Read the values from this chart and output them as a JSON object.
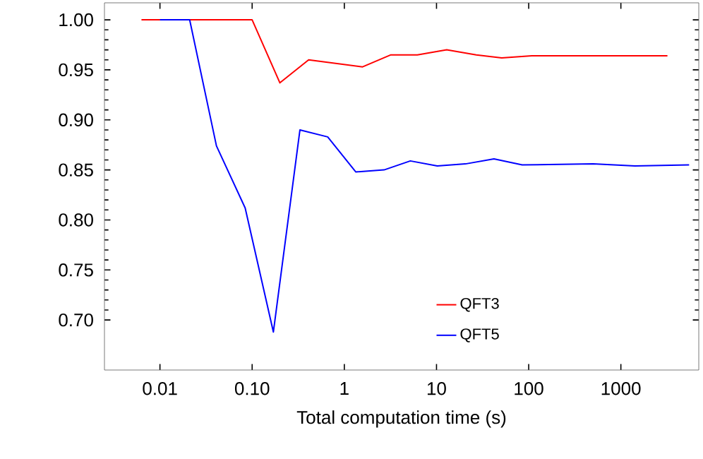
{
  "chart_data": {
    "type": "line",
    "xlabel": "Total computation time (s)",
    "log": "x",
    "xlim": [
      0.0025,
      7000
    ],
    "ylim": [
      0.65,
      1.017
    ],
    "xticks": [
      0.01,
      {
        "value": 0.1,
        "label": "0.10"
      },
      1,
      10,
      100,
      1000
    ],
    "yticks": [
      {
        "value": 0.7,
        "label": "0.70"
      },
      0.75,
      {
        "value": 0.8,
        "label": "0.80"
      },
      0.85,
      {
        "value": 0.9,
        "label": "0.90"
      },
      0.95,
      {
        "value": 1.0,
        "label": "1.00"
      }
    ],
    "legend": "bottom right",
    "grid": false,
    "marker": "none",
    "line_style": "solid",
    "series": [
      {
        "name": "QFT3",
        "color": "#ff0000",
        "x": [
          0.0063,
          0.1,
          0.2,
          0.41,
          1.58,
          3.2,
          6.2,
          12.9,
          27,
          51,
          108,
          3200
        ],
        "values": [
          1.0,
          1.0,
          0.937,
          0.96,
          0.953,
          0.965,
          0.965,
          0.97,
          0.965,
          0.962,
          0.964,
          0.964
        ]
      },
      {
        "name": "QFT5",
        "color": "#0000ff",
        "x": [
          0.01,
          0.021,
          0.041,
          0.084,
          0.17,
          0.33,
          0.66,
          1.33,
          2.7,
          5.2,
          10.2,
          20.6,
          42,
          85,
          500,
          1420,
          5500
        ],
        "values": [
          1.0,
          1.0,
          0.874,
          0.812,
          0.688,
          0.89,
          0.883,
          0.848,
          0.85,
          0.859,
          0.854,
          0.856,
          0.861,
          0.855,
          0.856,
          0.854,
          0.855
        ]
      }
    ]
  }
}
